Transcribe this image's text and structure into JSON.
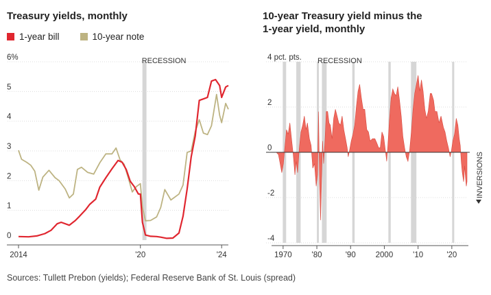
{
  "left_panel": {
    "title": "Treasury yields, monthly",
    "legend": [
      {
        "label": "1-year bill",
        "color": "#e0262f"
      },
      {
        "label": "10-year note",
        "color": "#bdb382"
      }
    ],
    "recession_label": "RECESSION"
  },
  "right_panel": {
    "title": "10-year Treasury yield minus the 1-year yield, monthly",
    "recession_label": "RECESSION",
    "inversions_label": "INVERSIONS"
  },
  "source": "Sources: Tullett Prebon (yields); Federal Reserve Bank of St. Louis (spread)",
  "colors": {
    "bill": "#e0262f",
    "note": "#bdb382",
    "spread": "#ef6a5f",
    "recession": "#d6d6d6",
    "grid": "#dcdcdc"
  },
  "chart_data": [
    {
      "type": "line",
      "title": "Treasury yields, monthly",
      "ylim": [
        0,
        6
      ],
      "ytick_labels": [
        "6%",
        "5",
        "4",
        "3",
        "2",
        "1",
        "0"
      ],
      "yticks": [
        6,
        5,
        4,
        3,
        2,
        1,
        0
      ],
      "xlim": [
        2014.0,
        2024.33
      ],
      "xtick_labels": [
        "2014",
        "'20",
        "'24"
      ],
      "xticks": [
        2014,
        2020,
        2024
      ],
      "recessions": [
        [
          2020.1,
          2020.3
        ]
      ],
      "series": [
        {
          "name": "1-year bill",
          "points": [
            [
              2014.0,
              0.12
            ],
            [
              2014.5,
              0.11
            ],
            [
              2014.9,
              0.14
            ],
            [
              2015.3,
              0.22
            ],
            [
              2015.6,
              0.33
            ],
            [
              2015.9,
              0.55
            ],
            [
              2016.1,
              0.6
            ],
            [
              2016.5,
              0.5
            ],
            [
              2016.8,
              0.66
            ],
            [
              2017.0,
              0.8
            ],
            [
              2017.3,
              1.02
            ],
            [
              2017.5,
              1.2
            ],
            [
              2017.8,
              1.38
            ],
            [
              2018.0,
              1.78
            ],
            [
              2018.3,
              2.1
            ],
            [
              2018.6,
              2.4
            ],
            [
              2018.9,
              2.68
            ],
            [
              2019.1,
              2.62
            ],
            [
              2019.3,
              2.38
            ],
            [
              2019.5,
              1.98
            ],
            [
              2019.7,
              1.8
            ],
            [
              2019.9,
              1.55
            ],
            [
              2020.0,
              1.55
            ],
            [
              2020.1,
              0.6
            ],
            [
              2020.25,
              0.17
            ],
            [
              2020.5,
              0.13
            ],
            [
              2020.8,
              0.12
            ],
            [
              2021.0,
              0.1
            ],
            [
              2021.3,
              0.06
            ],
            [
              2021.6,
              0.07
            ],
            [
              2021.9,
              0.24
            ],
            [
              2022.1,
              0.8
            ],
            [
              2022.3,
              1.72
            ],
            [
              2022.5,
              2.8
            ],
            [
              2022.7,
              3.5
            ],
            [
              2022.9,
              4.7
            ],
            [
              2023.1,
              4.75
            ],
            [
              2023.3,
              4.8
            ],
            [
              2023.5,
              5.35
            ],
            [
              2023.7,
              5.4
            ],
            [
              2023.9,
              5.2
            ],
            [
              2024.0,
              4.8
            ],
            [
              2024.2,
              5.15
            ],
            [
              2024.33,
              5.2
            ]
          ]
        },
        {
          "name": "10-year note",
          "points": [
            [
              2014.0,
              3.02
            ],
            [
              2014.15,
              2.72
            ],
            [
              2014.4,
              2.62
            ],
            [
              2014.6,
              2.52
            ],
            [
              2014.8,
              2.32
            ],
            [
              2015.0,
              1.68
            ],
            [
              2015.2,
              2.12
            ],
            [
              2015.5,
              2.35
            ],
            [
              2015.8,
              2.1
            ],
            [
              2016.0,
              2.0
            ],
            [
              2016.3,
              1.72
            ],
            [
              2016.5,
              1.42
            ],
            [
              2016.7,
              1.55
            ],
            [
              2016.9,
              2.38
            ],
            [
              2017.1,
              2.45
            ],
            [
              2017.4,
              2.28
            ],
            [
              2017.7,
              2.22
            ],
            [
              2018.0,
              2.6
            ],
            [
              2018.3,
              2.9
            ],
            [
              2018.6,
              2.9
            ],
            [
              2018.8,
              3.1
            ],
            [
              2019.0,
              2.7
            ],
            [
              2019.2,
              2.55
            ],
            [
              2019.4,
              2.1
            ],
            [
              2019.6,
              1.62
            ],
            [
              2019.8,
              1.8
            ],
            [
              2020.0,
              1.9
            ],
            [
              2020.1,
              1.1
            ],
            [
              2020.25,
              0.65
            ],
            [
              2020.5,
              0.66
            ],
            [
              2020.8,
              0.78
            ],
            [
              2021.0,
              1.1
            ],
            [
              2021.2,
              1.7
            ],
            [
              2021.5,
              1.35
            ],
            [
              2021.9,
              1.55
            ],
            [
              2022.1,
              1.85
            ],
            [
              2022.3,
              2.95
            ],
            [
              2022.5,
              3.0
            ],
            [
              2022.7,
              3.65
            ],
            [
              2022.9,
              4.05
            ],
            [
              2023.1,
              3.6
            ],
            [
              2023.3,
              3.55
            ],
            [
              2023.5,
              3.85
            ],
            [
              2023.75,
              4.9
            ],
            [
              2023.9,
              4.2
            ],
            [
              2024.0,
              3.95
            ],
            [
              2024.2,
              4.6
            ],
            [
              2024.33,
              4.4
            ]
          ]
        }
      ]
    },
    {
      "type": "area",
      "title": "10-year Treasury yield minus the 1-year yield, monthly",
      "ylabel": "pct. pts.",
      "ylim": [
        -4,
        4
      ],
      "ytick_labels": [
        "4 pct. pts.",
        "2",
        "0",
        "-2",
        "-4"
      ],
      "yticks": [
        4,
        2,
        0,
        -2,
        -4
      ],
      "xlim": [
        1968.0,
        2024.5
      ],
      "xtick_labels": [
        "1970",
        "'80",
        "'90",
        "2000",
        "'10",
        "'20"
      ],
      "xticks": [
        1970,
        1980,
        1990,
        2000,
        2010,
        2020
      ],
      "recessions": [
        [
          1969.9,
          1970.9
        ],
        [
          1973.9,
          1975.2
        ],
        [
          1980.0,
          1980.6
        ],
        [
          1981.5,
          1982.9
        ],
        [
          1990.5,
          1991.2
        ],
        [
          2001.2,
          2001.9
        ],
        [
          2007.9,
          2009.5
        ],
        [
          2020.1,
          2020.3
        ]
      ],
      "series": [
        {
          "name": "",
          "points": [
            [
              1968.0,
              0.0
            ],
            [
              1968.6,
              -0.1
            ],
            [
              1969.0,
              -0.4
            ],
            [
              1969.6,
              -0.9
            ],
            [
              1970.1,
              -0.5
            ],
            [
              1970.5,
              0.2
            ],
            [
              1971.0,
              1.0
            ],
            [
              1971.5,
              0.8
            ],
            [
              1972.0,
              1.3
            ],
            [
              1972.5,
              0.6
            ],
            [
              1973.0,
              -0.1
            ],
            [
              1973.5,
              -1.0
            ],
            [
              1973.9,
              -0.4
            ],
            [
              1974.3,
              -0.9
            ],
            [
              1974.8,
              0.2
            ],
            [
              1975.3,
              0.9
            ],
            [
              1975.8,
              1.2
            ],
            [
              1976.3,
              1.6
            ],
            [
              1976.8,
              1.0
            ],
            [
              1977.2,
              1.3
            ],
            [
              1977.8,
              0.6
            ],
            [
              1978.3,
              0.3
            ],
            [
              1978.8,
              -0.7
            ],
            [
              1979.3,
              -0.5
            ],
            [
              1979.8,
              -1.5
            ],
            [
              1980.2,
              -1.0
            ],
            [
              1980.5,
              1.8
            ],
            [
              1980.8,
              -1.4
            ],
            [
              1981.1,
              -3.0
            ],
            [
              1981.4,
              -1.2
            ],
            [
              1981.7,
              0.5
            ],
            [
              1982.0,
              -0.5
            ],
            [
              1982.4,
              0.5
            ],
            [
              1982.8,
              1.8
            ],
            [
              1983.2,
              1.8
            ],
            [
              1983.6,
              1.3
            ],
            [
              1984.0,
              1.2
            ],
            [
              1984.5,
              0.6
            ],
            [
              1985.0,
              1.5
            ],
            [
              1985.5,
              1.9
            ],
            [
              1986.0,
              1.6
            ],
            [
              1986.5,
              1.3
            ],
            [
              1987.0,
              1.2
            ],
            [
              1987.5,
              1.6
            ],
            [
              1988.0,
              1.0
            ],
            [
              1988.5,
              0.6
            ],
            [
              1989.0,
              0.2
            ],
            [
              1989.3,
              -0.2
            ],
            [
              1989.7,
              0.1
            ],
            [
              1990.2,
              0.5
            ],
            [
              1990.7,
              0.8
            ],
            [
              1991.2,
              1.2
            ],
            [
              1991.7,
              2.0
            ],
            [
              1992.2,
              2.7
            ],
            [
              1992.7,
              3.0
            ],
            [
              1993.2,
              2.4
            ],
            [
              1993.7,
              1.9
            ],
            [
              1994.2,
              1.9
            ],
            [
              1994.8,
              1.0
            ],
            [
              1995.3,
              0.9
            ],
            [
              1995.8,
              0.5
            ],
            [
              1996.5,
              0.6
            ],
            [
              1997.2,
              0.6
            ],
            [
              1997.8,
              0.4
            ],
            [
              1998.3,
              0.2
            ],
            [
              1998.8,
              0.2
            ],
            [
              1999.3,
              0.9
            ],
            [
              1999.8,
              0.7
            ],
            [
              2000.3,
              0.1
            ],
            [
              2000.7,
              -0.4
            ],
            [
              2001.0,
              0.2
            ],
            [
              2001.5,
              1.4
            ],
            [
              2002.0,
              2.4
            ],
            [
              2002.5,
              2.8
            ],
            [
              2003.0,
              2.6
            ],
            [
              2003.5,
              2.5
            ],
            [
              2004.0,
              2.9
            ],
            [
              2004.5,
              2.3
            ],
            [
              2005.0,
              1.6
            ],
            [
              2005.5,
              0.7
            ],
            [
              2006.0,
              0.2
            ],
            [
              2006.5,
              -0.2
            ],
            [
              2007.0,
              -0.4
            ],
            [
              2007.5,
              0.1
            ],
            [
              2008.0,
              0.9
            ],
            [
              2008.5,
              1.9
            ],
            [
              2009.0,
              2.6
            ],
            [
              2009.5,
              3.0
            ],
            [
              2010.0,
              3.4
            ],
            [
              2010.5,
              2.7
            ],
            [
              2011.0,
              3.2
            ],
            [
              2011.5,
              2.7
            ],
            [
              2012.0,
              1.9
            ],
            [
              2012.5,
              1.5
            ],
            [
              2013.0,
              1.8
            ],
            [
              2013.6,
              2.6
            ],
            [
              2014.0,
              2.6
            ],
            [
              2014.6,
              2.3
            ],
            [
              2015.0,
              1.8
            ],
            [
              2015.6,
              1.8
            ],
            [
              2016.2,
              1.3
            ],
            [
              2016.8,
              1.6
            ],
            [
              2017.5,
              1.1
            ],
            [
              2018.0,
              0.9
            ],
            [
              2018.5,
              0.5
            ],
            [
              2019.0,
              0.2
            ],
            [
              2019.5,
              -0.2
            ],
            [
              2019.9,
              0.1
            ],
            [
              2020.3,
              0.5
            ],
            [
              2020.8,
              0.8
            ],
            [
              2021.3,
              1.5
            ],
            [
              2021.8,
              1.2
            ],
            [
              2022.2,
              0.6
            ],
            [
              2022.5,
              0.3
            ],
            [
              2022.8,
              -0.4
            ],
            [
              2023.1,
              -0.9
            ],
            [
              2023.5,
              -1.3
            ],
            [
              2023.8,
              -0.6
            ],
            [
              2024.0,
              -1.0
            ],
            [
              2024.3,
              -1.5
            ],
            [
              2024.5,
              -1.3
            ]
          ]
        }
      ]
    }
  ]
}
